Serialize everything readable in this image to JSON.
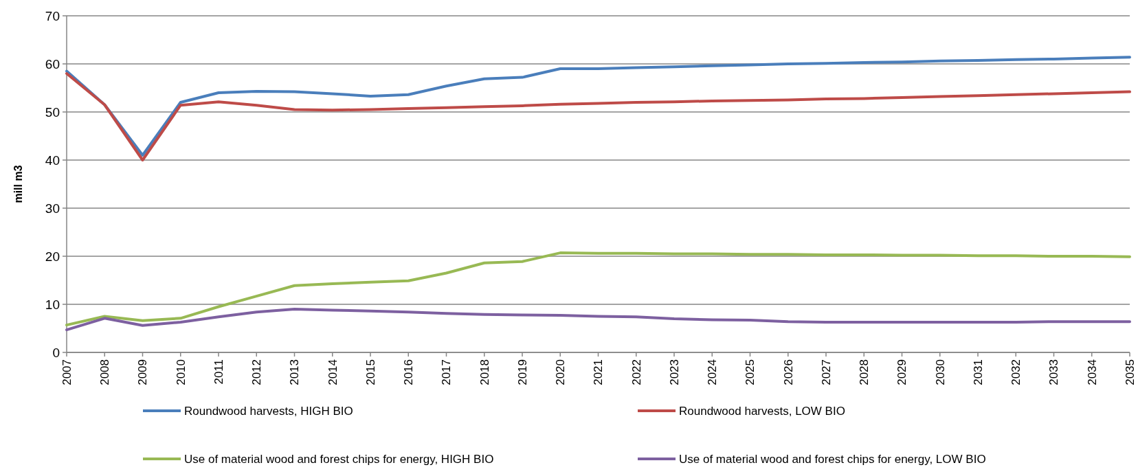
{
  "chart_data": {
    "type": "line",
    "ylabel": "mill m3",
    "categories": [
      "2007",
      "2008",
      "2009",
      "2010",
      "2011",
      "2012",
      "2013",
      "2014",
      "2015",
      "2016",
      "2017",
      "2018",
      "2019",
      "2020",
      "2021",
      "2022",
      "2023",
      "2024",
      "2025",
      "2026",
      "2027",
      "2028",
      "2029",
      "2030",
      "2031",
      "2032",
      "2033",
      "2034",
      "2035"
    ],
    "series": [
      {
        "name": "Roundwood harvests, HIGH BIO",
        "color": "#4a7ebb",
        "values": [
          58.5,
          51.5,
          41,
          52,
          54,
          54.3,
          54.2,
          53.8,
          53.3,
          53.6,
          55.4,
          56.9,
          57.2,
          59,
          59,
          59.2,
          59.4,
          59.6,
          59.8,
          60,
          60.1,
          60.3,
          60.4,
          60.6,
          60.7,
          60.9,
          61,
          61.2,
          61.4
        ]
      },
      {
        "name": "Roundwood harvests, LOW BIO",
        "color": "#be4b48",
        "values": [
          58,
          51.5,
          40,
          51.4,
          52.1,
          51.4,
          50.5,
          50.4,
          50.5,
          50.7,
          50.9,
          51.1,
          51.3,
          51.6,
          51.8,
          52,
          52.1,
          52.3,
          52.4,
          52.5,
          52.7,
          52.8,
          53,
          53.2,
          53.4,
          53.6,
          53.8,
          54,
          54.2
        ]
      },
      {
        "name": "Use of material wood and forest chips for energy, HIGH BIO",
        "color": "#98b954",
        "values": [
          5.7,
          7.5,
          6.6,
          7.1,
          9.5,
          11.7,
          13.9,
          14.3,
          14.6,
          14.9,
          16.5,
          18.6,
          18.9,
          20.7,
          20.6,
          20.6,
          20.5,
          20.5,
          20.4,
          20.4,
          20.3,
          20.3,
          20.2,
          20.2,
          20.1,
          20.1,
          20,
          20,
          19.9
        ]
      },
      {
        "name": "Use of material wood and forest chips for energy, LOW BIO",
        "color": "#7d60a0",
        "values": [
          4.7,
          7.1,
          5.6,
          6.3,
          7.4,
          8.4,
          9,
          8.8,
          8.6,
          8.4,
          8.1,
          7.9,
          7.8,
          7.7,
          7.5,
          7.4,
          7,
          6.8,
          6.7,
          6.4,
          6.3,
          6.3,
          6.3,
          6.3,
          6.3,
          6.3,
          6.4,
          6.4,
          6.4
        ]
      }
    ],
    "ylim": [
      0,
      70
    ],
    "yticks": [
      0,
      10,
      20,
      30,
      40,
      50,
      60,
      70
    ],
    "grid": "y",
    "legend": "bottom",
    "marker": "none",
    "line_style": "solid"
  }
}
